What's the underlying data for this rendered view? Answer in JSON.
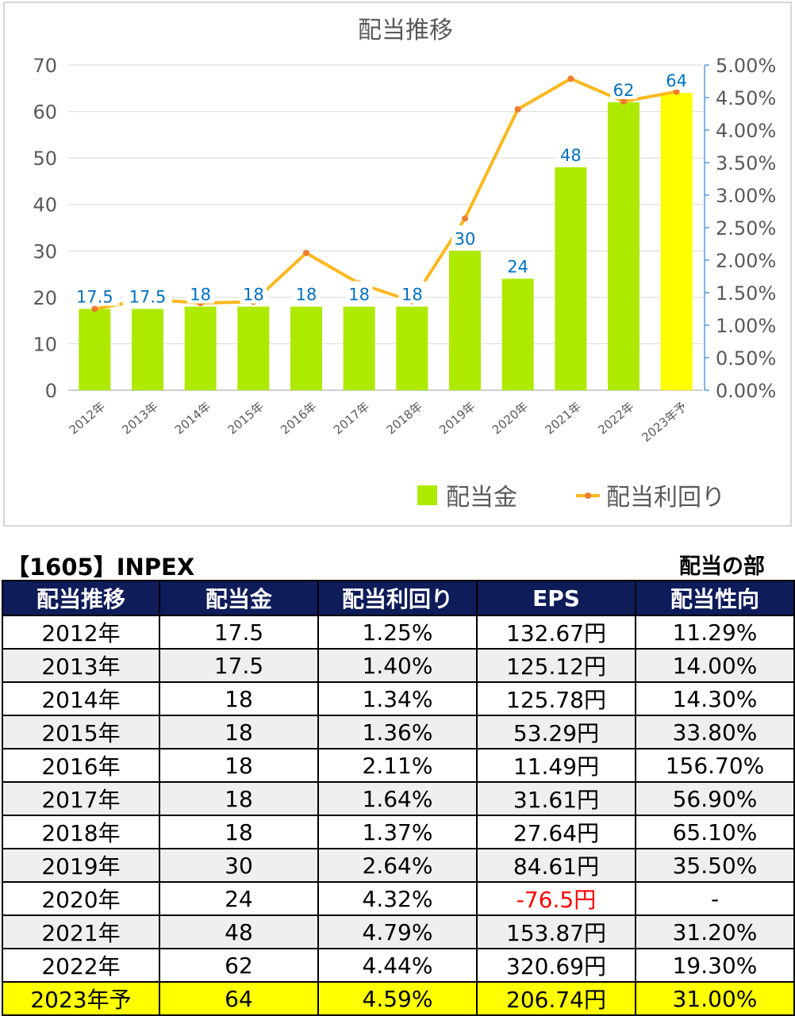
{
  "chart_data": {
    "type": "bar",
    "title": "配当推移",
    "categories": [
      "2012年",
      "2013年",
      "2014年",
      "2015年",
      "2016年",
      "2017年",
      "2018年",
      "2019年",
      "2020年",
      "2021年",
      "2022年",
      "2023年予"
    ],
    "series": [
      {
        "name": "配当金",
        "type": "bar",
        "axis": "left",
        "values": [
          17.5,
          17.5,
          18,
          18,
          18,
          18,
          18,
          30,
          24,
          48,
          62,
          64
        ],
        "data_labels": [
          "17.5",
          "17.5",
          "18",
          "18",
          "18",
          "18",
          "18",
          "30",
          "24",
          "48",
          "62",
          "64"
        ]
      },
      {
        "name": "配当利回り",
        "type": "line",
        "axis": "right",
        "values": [
          1.25,
          1.4,
          1.34,
          1.36,
          2.11,
          1.64,
          1.37,
          2.64,
          4.32,
          4.79,
          4.44,
          4.59
        ]
      }
    ],
    "ylim_left": [
      0,
      70
    ],
    "yticks_left": [
      "0",
      "10",
      "20",
      "30",
      "40",
      "50",
      "60",
      "70"
    ],
    "ylim_right": [
      0,
      5.0
    ],
    "yticks_right": [
      "0.00%",
      "0.50%",
      "1.00%",
      "1.50%",
      "2.00%",
      "2.50%",
      "3.00%",
      "3.50%",
      "4.00%",
      "4.50%",
      "5.00%"
    ],
    "legend_position": "bottom-right",
    "grid": "horizontal",
    "colors": {
      "bar": "#aeea00",
      "bar_highlight": "#ffff00",
      "line": "#fbb81e",
      "marker": "#ee7d31",
      "data_label": "#0070c0",
      "grid": "#d9d9d9",
      "right_axis": "#5b9bd5"
    }
  },
  "caption": {
    "left": "【1605】INPEX",
    "right": "配当の部"
  },
  "table": {
    "headers": [
      "配当推移",
      "配当金",
      "配当利回り",
      "EPS",
      "配当性向"
    ],
    "rows": [
      [
        "2012年",
        "17.5",
        "1.25%",
        "132.67円",
        "11.29%"
      ],
      [
        "2013年",
        "17.5",
        "1.40%",
        "125.12円",
        "14.00%"
      ],
      [
        "2014年",
        "18",
        "1.34%",
        "125.78円",
        "14.30%"
      ],
      [
        "2015年",
        "18",
        "1.36%",
        "53.29円",
        "33.80%"
      ],
      [
        "2016年",
        "18",
        "2.11%",
        "11.49円",
        "156.70%"
      ],
      [
        "2017年",
        "18",
        "1.64%",
        "31.61円",
        "56.90%"
      ],
      [
        "2018年",
        "18",
        "1.37%",
        "27.64円",
        "65.10%"
      ],
      [
        "2019年",
        "30",
        "2.64%",
        "84.61円",
        "35.50%"
      ],
      [
        "2020年",
        "24",
        "4.32%",
        "-76.5円",
        "-"
      ],
      [
        "2021年",
        "48",
        "4.79%",
        "153.87円",
        "31.20%"
      ],
      [
        "2022年",
        "62",
        "4.44%",
        "320.69円",
        "19.30%"
      ],
      [
        "2023年予",
        "64",
        "4.59%",
        "206.74円",
        "31.00%"
      ]
    ],
    "header_bg": "#0f1c5a",
    "highlight_bg": "#ffff00",
    "negative_color": "#ff0000"
  }
}
